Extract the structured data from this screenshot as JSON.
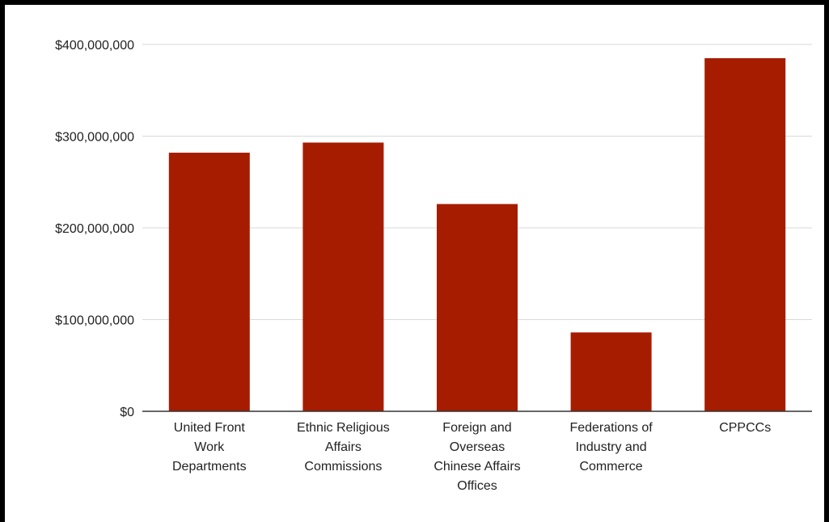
{
  "chart_data": {
    "type": "bar",
    "title": "",
    "xlabel": "",
    "ylabel": "",
    "categories": [
      "United Front Work Departments",
      "Ethnic Religious Affairs Commissions",
      "Foreign and Overseas Chinese Affairs Offices",
      "Federations of Industry and Commerce",
      "CPPCCs"
    ],
    "category_lines": [
      [
        "United Front",
        "Work",
        "Departments"
      ],
      [
        "Ethnic Religious",
        "Affairs",
        "Commissions"
      ],
      [
        "Foreign and",
        "Overseas",
        "Chinese Affairs",
        "Offices"
      ],
      [
        "Federations of",
        "Industry and",
        "Commerce"
      ],
      [
        "CPPCCs"
      ]
    ],
    "values": [
      282000000,
      293000000,
      226000000,
      86000000,
      385000000
    ],
    "ylim": [
      0,
      400000000
    ],
    "yticks": [
      0,
      100000000,
      200000000,
      300000000,
      400000000
    ],
    "ytick_labels": [
      "$0",
      "$100,000,000",
      "$200,000,000",
      "$300,000,000",
      "$400,000,000"
    ],
    "bar_color": "#a61c00",
    "grid": true,
    "legend": "none"
  }
}
